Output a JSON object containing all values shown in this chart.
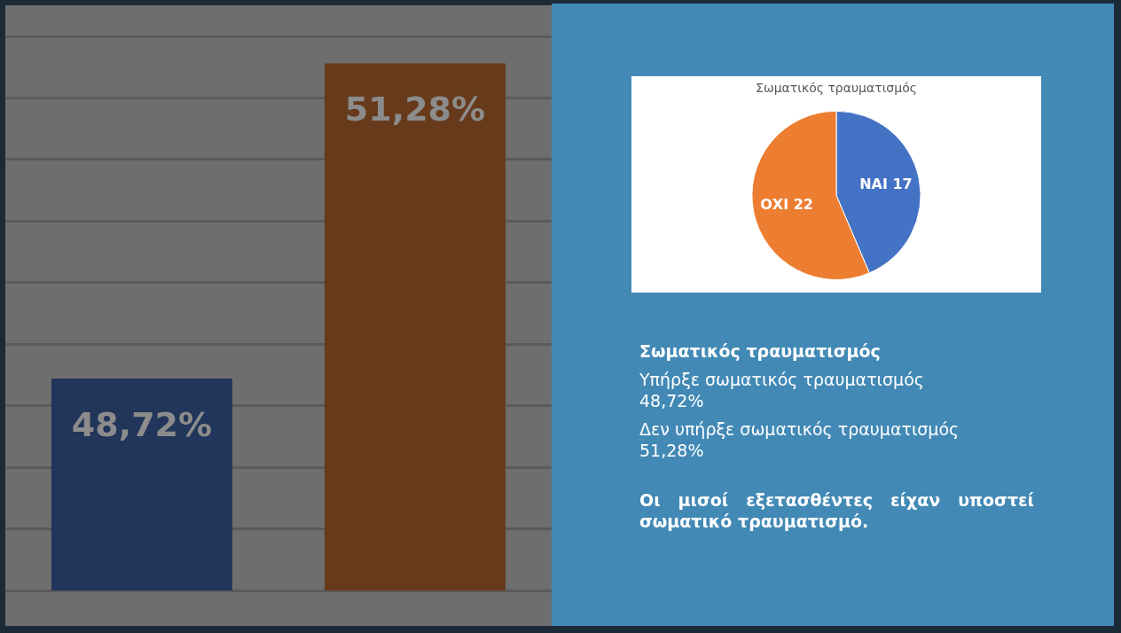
{
  "chart_data": [
    {
      "type": "bar",
      "categories": [
        null,
        null
      ],
      "values": [
        48.72,
        51.28
      ],
      "colors": [
        "#22355a",
        "#673a1c"
      ],
      "value_labels": [
        "48,72%",
        "51,28%"
      ],
      "ylim": [
        47,
        51.5
      ],
      "yticks": [
        {
          "value": 47,
          "label": null
        },
        {
          "value": 47.5,
          "label": null
        },
        {
          "value": 48,
          "label": null
        },
        {
          "value": 48.5,
          "label": null
        },
        {
          "value": 49,
          "label": null
        },
        {
          "value": 49.5,
          "label": null
        },
        {
          "value": 50,
          "label": null
        },
        {
          "value": 50.5,
          "label": null
        },
        {
          "value": 51,
          "label": null
        },
        {
          "value": 51.5,
          "label": null
        }
      ],
      "grid": "y",
      "tick_labels": false,
      "legend": false
    },
    {
      "type": "pie",
      "title": "Σωματικός τραυματισμός",
      "categories": [
        null,
        null
      ],
      "values": [
        17,
        22
      ],
      "colors": [
        "#4472c4",
        "#ed7d31"
      ],
      "value_labels": [
        "ΝΑΙ 17",
        "ΟΧΙ 22"
      ],
      "legend": false
    },
    {
      "type": "other",
      "title": "Σωματικός τραυματισμός",
      "annotations": [
        "Υπήρξε σωματικός τραυματισμός",
        "48,72%",
        "Δεν υπήρξε σωματικός τραυματισμός",
        "51,28%",
        "Οι μισοί εξετασθέντες είχαν υποστεί σωματικό τραυματισμό."
      ]
    }
  ]
}
